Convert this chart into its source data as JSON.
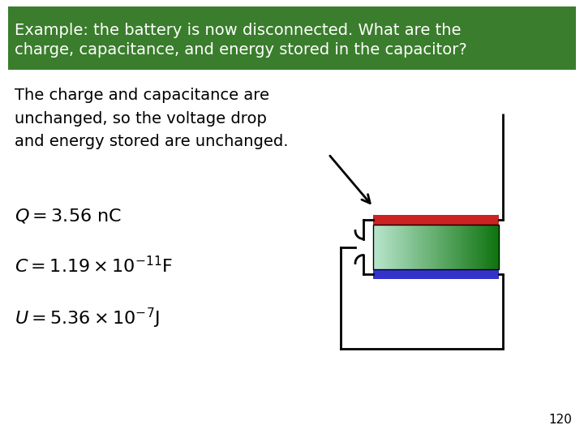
{
  "title_line1": "Example: the battery is now disconnected. What are the",
  "title_line2": "charge, capacitance, and energy stored in the capacitor?",
  "title_bg": "#3a7d2c",
  "title_color": "#ffffff",
  "body_bg": "#ffffff",
  "description": "The charge and capacitance are\nunchanged, so the voltage drop\nand energy stored are unchanged.",
  "eq1": "Q = 3.56 nC",
  "eq2": "C = 1.19×10$^{-11}$F",
  "eq3": "U = 5.36×10$^{-7}$J",
  "page_num": "120",
  "desc_fontsize": 14,
  "eq_fontsize": 16,
  "title_fontsize": 14,
  "cap_plate_top_color": "#cc2222",
  "cap_plate_bottom_color": "#3333cc",
  "wire_color": "#000000",
  "text_color": "#000000"
}
